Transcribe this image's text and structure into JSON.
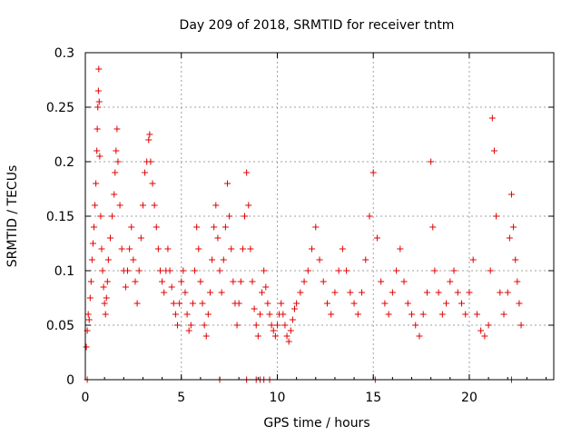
{
  "chart_data": {
    "type": "scatter",
    "title": "Day 209 of 2018, SRMTID for receiver tntm",
    "xlabel": "GPS time / hours",
    "ylabel": "SRMTID / TECUs",
    "xlim": [
      0,
      24.4
    ],
    "ylim": [
      0,
      0.3
    ],
    "x_ticks": [
      0,
      5,
      10,
      15,
      20
    ],
    "x_tick_labels": [
      "0",
      "5",
      "10",
      "15",
      "20"
    ],
    "y_ticks": [
      0,
      0.05,
      0.1,
      0.15,
      0.2,
      0.25,
      0.3
    ],
    "y_tick_labels": [
      "0",
      "0.05",
      "0.1",
      "0.15",
      "0.2",
      "0.25",
      "0.3"
    ],
    "grid": true,
    "marker": "plus",
    "color": "#e00000",
    "series": [
      {
        "name": "SRMTID",
        "points": [
          [
            0.05,
            0.03
          ],
          [
            0.1,
            0.045
          ],
          [
            0.15,
            0.06
          ],
          [
            0.2,
            0.055
          ],
          [
            0.25,
            0.075
          ],
          [
            0.3,
            0.09
          ],
          [
            0.35,
            0.11
          ],
          [
            0.4,
            0.125
          ],
          [
            0.45,
            0.14
          ],
          [
            0.5,
            0.16
          ],
          [
            0.55,
            0.18
          ],
          [
            0.6,
            0.21
          ],
          [
            0.62,
            0.23
          ],
          [
            0.65,
            0.25
          ],
          [
            0.68,
            0.265
          ],
          [
            0.7,
            0.285
          ],
          [
            0.72,
            0.255
          ],
          [
            0.75,
            0.205
          ],
          [
            0.8,
            0.15
          ],
          [
            0.85,
            0.12
          ],
          [
            0.9,
            0.1
          ],
          [
            0.95,
            0.085
          ],
          [
            1.0,
            0.07
          ],
          [
            1.05,
            0.06
          ],
          [
            1.1,
            0.075
          ],
          [
            1.15,
            0.09
          ],
          [
            1.2,
            0.11
          ],
          [
            1.3,
            0.13
          ],
          [
            1.4,
            0.15
          ],
          [
            1.5,
            0.17
          ],
          [
            1.55,
            0.19
          ],
          [
            1.6,
            0.21
          ],
          [
            1.65,
            0.23
          ],
          [
            1.7,
            0.2
          ],
          [
            1.8,
            0.16
          ],
          [
            1.9,
            0.12
          ],
          [
            2.0,
            0.1
          ],
          [
            2.1,
            0.085
          ],
          [
            2.2,
            0.1
          ],
          [
            2.3,
            0.12
          ],
          [
            2.4,
            0.14
          ],
          [
            2.5,
            0.11
          ],
          [
            2.6,
            0.09
          ],
          [
            2.7,
            0.07
          ],
          [
            2.8,
            0.1
          ],
          [
            2.9,
            0.13
          ],
          [
            3.0,
            0.16
          ],
          [
            3.1,
            0.19
          ],
          [
            3.2,
            0.2
          ],
          [
            3.3,
            0.22
          ],
          [
            3.35,
            0.225
          ],
          [
            3.4,
            0.2
          ],
          [
            3.5,
            0.18
          ],
          [
            3.6,
            0.16
          ],
          [
            3.7,
            0.14
          ],
          [
            3.8,
            0.12
          ],
          [
            3.9,
            0.1
          ],
          [
            4.0,
            0.09
          ],
          [
            4.1,
            0.08
          ],
          [
            4.2,
            0.1
          ],
          [
            4.3,
            0.12
          ],
          [
            4.4,
            0.1
          ],
          [
            4.5,
            0.085
          ],
          [
            4.6,
            0.07
          ],
          [
            4.7,
            0.06
          ],
          [
            4.8,
            0.05
          ],
          [
            4.9,
            0.07
          ],
          [
            5.0,
            0.09
          ],
          [
            5.1,
            0.1
          ],
          [
            5.2,
            0.08
          ],
          [
            5.3,
            0.06
          ],
          [
            5.4,
            0.045
          ],
          [
            5.5,
            0.05
          ],
          [
            5.6,
            0.07
          ],
          [
            5.7,
            0.1
          ],
          [
            5.8,
            0.14
          ],
          [
            5.9,
            0.12
          ],
          [
            6.0,
            0.09
          ],
          [
            6.1,
            0.07
          ],
          [
            6.2,
            0.05
          ],
          [
            6.3,
            0.04
          ],
          [
            6.4,
            0.06
          ],
          [
            6.5,
            0.08
          ],
          [
            6.6,
            0.11
          ],
          [
            6.7,
            0.14
          ],
          [
            6.8,
            0.16
          ],
          [
            6.9,
            0.13
          ],
          [
            7.0,
            0.1
          ],
          [
            7.1,
            0.08
          ],
          [
            7.2,
            0.11
          ],
          [
            7.3,
            0.14
          ],
          [
            7.4,
            0.18
          ],
          [
            7.5,
            0.15
          ],
          [
            7.6,
            0.12
          ],
          [
            7.7,
            0.09
          ],
          [
            7.8,
            0.07
          ],
          [
            7.9,
            0.05
          ],
          [
            8.0,
            0.07
          ],
          [
            8.1,
            0.09
          ],
          [
            8.2,
            0.12
          ],
          [
            8.3,
            0.15
          ],
          [
            8.4,
            0.19
          ],
          [
            8.5,
            0.16
          ],
          [
            8.6,
            0.12
          ],
          [
            8.7,
            0.09
          ],
          [
            8.8,
            0.065
          ],
          [
            8.9,
            0.05
          ],
          [
            9.0,
            0.04
          ],
          [
            9.1,
            0.06
          ],
          [
            9.2,
            0.08
          ],
          [
            9.3,
            0.1
          ],
          [
            9.4,
            0.085
          ],
          [
            9.5,
            0.07
          ],
          [
            9.6,
            0.06
          ],
          [
            9.7,
            0.05
          ],
          [
            9.8,
            0.045
          ],
          [
            9.9,
            0.04
          ],
          [
            10.0,
            0.05
          ],
          [
            10.1,
            0.06
          ],
          [
            10.2,
            0.07
          ],
          [
            10.3,
            0.06
          ],
          [
            10.4,
            0.05
          ],
          [
            10.5,
            0.04
          ],
          [
            10.6,
            0.035
          ],
          [
            10.7,
            0.045
          ],
          [
            10.8,
            0.055
          ],
          [
            10.9,
            0.065
          ],
          [
            11.0,
            0.07
          ],
          [
            11.2,
            0.08
          ],
          [
            11.4,
            0.09
          ],
          [
            11.6,
            0.1
          ],
          [
            11.8,
            0.12
          ],
          [
            12.0,
            0.14
          ],
          [
            12.2,
            0.11
          ],
          [
            12.4,
            0.09
          ],
          [
            12.6,
            0.07
          ],
          [
            12.8,
            0.06
          ],
          [
            13.0,
            0.08
          ],
          [
            13.2,
            0.1
          ],
          [
            13.4,
            0.12
          ],
          [
            13.6,
            0.1
          ],
          [
            13.8,
            0.08
          ],
          [
            14.0,
            0.07
          ],
          [
            14.2,
            0.06
          ],
          [
            14.4,
            0.08
          ],
          [
            14.6,
            0.11
          ],
          [
            14.8,
            0.15
          ],
          [
            15.0,
            0.19
          ],
          [
            15.2,
            0.13
          ],
          [
            15.4,
            0.09
          ],
          [
            15.6,
            0.07
          ],
          [
            15.8,
            0.06
          ],
          [
            16.0,
            0.08
          ],
          [
            16.2,
            0.1
          ],
          [
            16.4,
            0.12
          ],
          [
            16.6,
            0.09
          ],
          [
            16.8,
            0.07
          ],
          [
            17.0,
            0.06
          ],
          [
            17.2,
            0.05
          ],
          [
            17.4,
            0.04
          ],
          [
            17.6,
            0.06
          ],
          [
            17.8,
            0.08
          ],
          [
            18.0,
            0.2
          ],
          [
            18.1,
            0.14
          ],
          [
            18.2,
            0.1
          ],
          [
            18.4,
            0.08
          ],
          [
            18.6,
            0.06
          ],
          [
            18.8,
            0.07
          ],
          [
            19.0,
            0.09
          ],
          [
            19.2,
            0.1
          ],
          [
            19.4,
            0.08
          ],
          [
            19.6,
            0.07
          ],
          [
            19.8,
            0.06
          ],
          [
            20.0,
            0.08
          ],
          [
            20.2,
            0.11
          ],
          [
            20.4,
            0.06
          ],
          [
            20.6,
            0.045
          ],
          [
            20.8,
            0.04
          ],
          [
            21.0,
            0.05
          ],
          [
            21.1,
            0.1
          ],
          [
            21.2,
            0.24
          ],
          [
            21.3,
            0.21
          ],
          [
            21.4,
            0.15
          ],
          [
            21.6,
            0.08
          ],
          [
            21.8,
            0.06
          ],
          [
            22.0,
            0.08
          ],
          [
            22.1,
            0.13
          ],
          [
            22.2,
            0.17
          ],
          [
            22.3,
            0.14
          ],
          [
            22.4,
            0.11
          ],
          [
            22.5,
            0.09
          ],
          [
            22.6,
            0.07
          ],
          [
            22.7,
            0.05
          ]
        ]
      }
    ],
    "zero_points": [
      0.1,
      7.0,
      8.4,
      8.9,
      9.1,
      9.3,
      9.6,
      15.1,
      22.2
    ]
  }
}
